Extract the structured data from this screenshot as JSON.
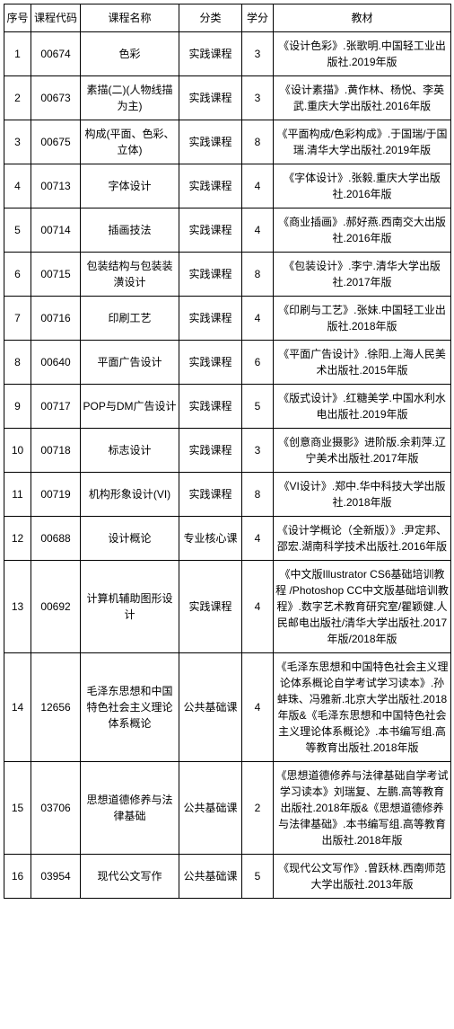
{
  "headers": [
    "序号",
    "课程代码",
    "课程名称",
    "分类",
    "学分",
    "教材"
  ],
  "rows": [
    {
      "seq": "1",
      "code": "00674",
      "name": "色彩",
      "category": "实践课程",
      "credits": "3",
      "textbook": "《设计色彩》.张歌明.中国轻工业出版社.2019年版"
    },
    {
      "seq": "2",
      "code": "00673",
      "name": "素描(二)(人物线描为主)",
      "category": "实践课程",
      "credits": "3",
      "textbook": "《设计素描》.黄作林、杨悦、李英武.重庆大学出版社.2016年版"
    },
    {
      "seq": "3",
      "code": "00675",
      "name": "构成(平面、色彩、立体)",
      "category": "实践课程",
      "credits": "8",
      "textbook": "《平面构成/色彩构成》.于国瑞/于国瑞.清华大学出版社.2019年版"
    },
    {
      "seq": "4",
      "code": "00713",
      "name": "字体设计",
      "category": "实践课程",
      "credits": "4",
      "textbook": "《字体设计》.张毅.重庆大学出版社.2016年版"
    },
    {
      "seq": "5",
      "code": "00714",
      "name": "插画技法",
      "category": "实践课程",
      "credits": "4",
      "textbook": "《商业插画》.郝好燕.西南交大出版社.2016年版"
    },
    {
      "seq": "6",
      "code": "00715",
      "name": "包装结构与包装装潢设计",
      "category": "实践课程",
      "credits": "8",
      "textbook": "《包装设计》.李宁.清华大学出版社.2017年版"
    },
    {
      "seq": "7",
      "code": "00716",
      "name": "印刷工艺",
      "category": "实践课程",
      "credits": "4",
      "textbook": "《印刷与工艺》.张妹.中国轻工业出版社.2018年版"
    },
    {
      "seq": "8",
      "code": "00640",
      "name": "平面广告设计",
      "category": "实践课程",
      "credits": "6",
      "textbook": "《平面广告设计》.徐阳.上海人民美术出版社.2015年版"
    },
    {
      "seq": "9",
      "code": "00717",
      "name": "POP与DM广告设计",
      "category": "实践课程",
      "credits": "5",
      "textbook": "《版式设计》.红糖美学.中国水利水电出版社.2019年版"
    },
    {
      "seq": "10",
      "code": "00718",
      "name": "标志设计",
      "category": "实践课程",
      "credits": "3",
      "textbook": "《创意商业摄影》进阶版.余莉萍.辽宁美术出版社.2017年版"
    },
    {
      "seq": "11",
      "code": "00719",
      "name": "机构形象设计(VI)",
      "category": "实践课程",
      "credits": "8",
      "textbook": "《VI设计》.郑中.华中科技大学出版社.2018年版"
    },
    {
      "seq": "12",
      "code": "00688",
      "name": "设计概论",
      "category": "专业核心课",
      "credits": "4",
      "textbook": "《设计学概论（全新版）》.尹定邦、邵宏.湖南科学技术出版社.2016年版"
    },
    {
      "seq": "13",
      "code": "00692",
      "name": "计算机辅助图形设计",
      "category": "实践课程",
      "credits": "4",
      "textbook": "《中文版Illustrator CS6基础培训教程 /Photoshop CC中文版基础培训教程》.数字艺术教育研究室/瞿颖健.人民邮电出版社/清华大学出版社.2017年版/2018年版"
    },
    {
      "seq": "14",
      "code": "12656",
      "name": "毛泽东思想和中国特色社会主义理论体系概论",
      "category": "公共基础课",
      "credits": "4",
      "textbook": "《毛泽东思想和中国特色社会主义理论体系概论自学考试学习读本》.孙蚌珠、冯雅新.北京大学出版社.2018年版&《毛泽东思想和中国特色社会主义理论体系概论》.本书编写组.高等教育出版社.2018年版"
    },
    {
      "seq": "15",
      "code": "03706",
      "name": "思想道德修养与法律基础",
      "category": "公共基础课",
      "credits": "2",
      "textbook": "《思想道德修养与法律基础自学考试学习读本》刘瑞复、左鹏.高等教育出版社.2018年版&《思想道德修养与法律基础》.本书编写组.高等教育出版社.2018年版"
    },
    {
      "seq": "16",
      "code": "03954",
      "name": "现代公文写作",
      "category": "公共基础课",
      "credits": "5",
      "textbook": "《现代公文写作》.曾跃林.西南师范大学出版社.2013年版"
    }
  ],
  "colors": {
    "border": "#000000",
    "background": "#ffffff",
    "text": "#000000"
  }
}
